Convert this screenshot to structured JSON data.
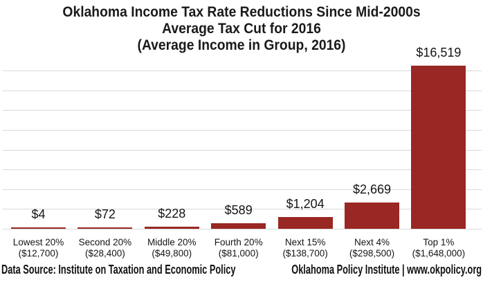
{
  "title": {
    "line1": "Oklahoma Income Tax Rate Reductions Since Mid-2000s",
    "line2": "Average Tax Cut for 2016",
    "line3": "(Average Income in Group, 2016)"
  },
  "footer": {
    "left": "Data Source: Institute on Taxation and Economic Policy",
    "right": "Oklahoma Policy Institute | www.okpolicy.org"
  },
  "colors": {
    "bar": "#992723",
    "gridline": "#d9d9d9",
    "text": "#141414"
  },
  "chart_data": {
    "type": "bar",
    "title": "Oklahoma Income Tax Rate Reductions Since Mid-2000s",
    "subtitle": "Average Tax Cut for 2016",
    "subtitle2": "(Average Income in Group, 2016)",
    "categories": [
      "Lowest 20%",
      "Second 20%",
      "Middle 20%",
      "Fourth 20%",
      "Next 15%",
      "Next 4%",
      "Top 1%"
    ],
    "category_sublabels": [
      "($12,700)",
      "($28,400)",
      "($49,800)",
      "($81,000)",
      "($138,700)",
      "($298,500)",
      "($1,648,000)"
    ],
    "values": [
      4,
      72,
      228,
      589,
      1204,
      2669,
      16519
    ],
    "data_labels": [
      "$4",
      "$72",
      "$228",
      "$589",
      "$1,204",
      "$2,669",
      "$16,519"
    ],
    "xlabel": "",
    "ylabel": "",
    "ylim": [
      0,
      16500
    ],
    "gridline_step": 2000,
    "grid": true,
    "legend": false,
    "bar_color": "#992723"
  }
}
